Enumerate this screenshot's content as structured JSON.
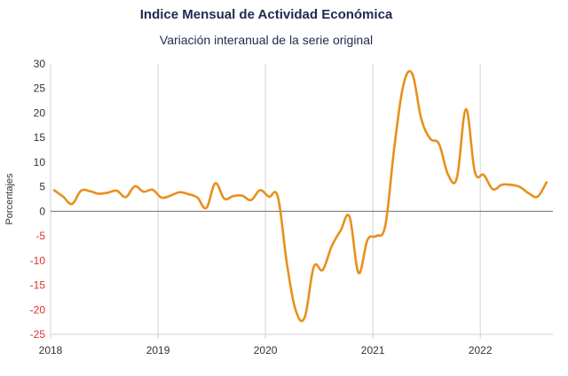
{
  "chart_data": {
    "type": "line",
    "title": "Indice Mensual de  Actividad Económica",
    "subtitle": "Variación interanual de la serie original",
    "ylabel": "Porcentajes",
    "xlabel": "",
    "ylim": [
      -25,
      30
    ],
    "yticks": [
      30,
      25,
      20,
      15,
      10,
      5,
      0,
      -5,
      -10,
      -15,
      -20,
      -25
    ],
    "xticks": [
      "2018",
      "2019",
      "2020",
      "2021",
      "2022"
    ],
    "grid": "vertical",
    "colors": {
      "line": "#e8901c",
      "grid": "#d0d0d0",
      "zero_line": "#888888",
      "positive_tick": "#333333",
      "negative_tick": "#e0302a"
    },
    "series": [
      {
        "x": [
          "2018-01",
          "2018-02",
          "2018-03",
          "2018-04",
          "2018-05",
          "2018-06",
          "2018-07",
          "2018-08",
          "2018-09",
          "2018-10",
          "2018-11",
          "2018-12",
          "2019-01",
          "2019-02",
          "2019-03",
          "2019-04",
          "2019-05",
          "2019-06",
          "2019-07",
          "2019-08",
          "2019-09",
          "2019-10",
          "2019-11",
          "2019-12",
          "2020-01",
          "2020-02",
          "2020-03",
          "2020-04",
          "2020-05",
          "2020-06",
          "2020-07",
          "2020-08",
          "2020-09",
          "2020-10",
          "2020-11",
          "2020-12",
          "2021-01",
          "2021-02",
          "2021-03",
          "2021-04",
          "2021-05",
          "2021-06",
          "2021-07",
          "2021-08",
          "2021-09",
          "2021-10",
          "2021-11",
          "2021-12",
          "2022-01",
          "2022-02",
          "2022-03",
          "2022-04",
          "2022-05",
          "2022-06",
          "2022-07",
          "2022-08"
        ],
        "values": [
          4.3,
          3.0,
          1.5,
          4.2,
          4.1,
          3.6,
          3.8,
          4.2,
          2.9,
          5.1,
          4.0,
          4.4,
          2.8,
          3.2,
          3.9,
          3.5,
          2.8,
          0.7,
          5.7,
          2.6,
          3.1,
          3.2,
          2.3,
          4.3,
          3.0,
          2.9,
          -10.6,
          -20.2,
          -21.5,
          -11.3,
          -11.9,
          -7.1,
          -3.9,
          -1.1,
          -12.5,
          -5.8,
          -5.0,
          -2.8,
          13.0,
          25.6,
          28.0,
          18.9,
          14.8,
          13.7,
          7.5,
          6.9,
          20.8,
          8.0,
          7.4,
          4.5,
          5.4,
          5.4,
          5.0,
          3.7,
          3.0,
          5.9
        ]
      }
    ]
  }
}
